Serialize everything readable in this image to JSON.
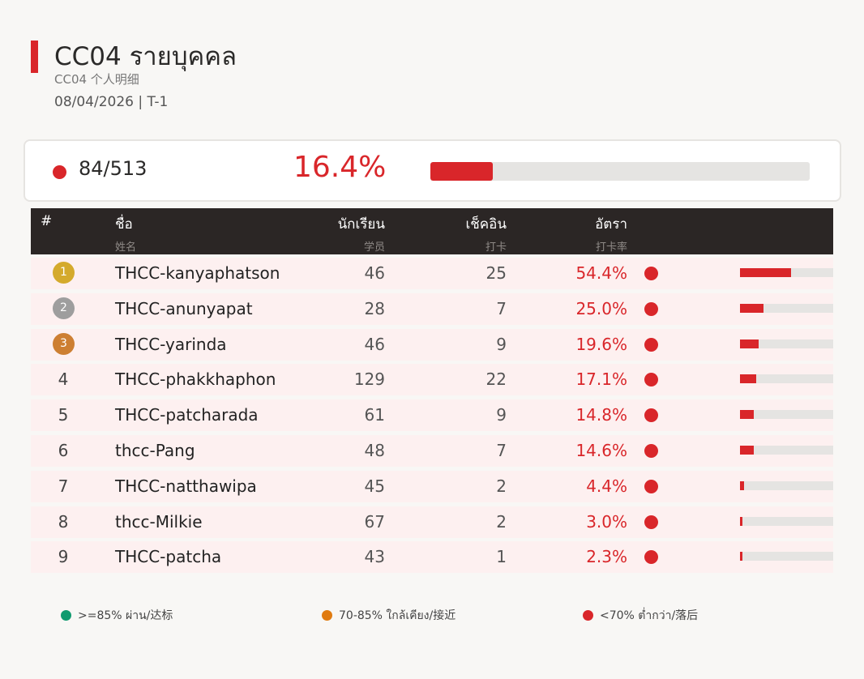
{
  "header": {
    "title": "CC04  รายบุคคล",
    "subtitle": "CC04  个人明细",
    "date": "08/04/2026  |  T-1"
  },
  "summary": {
    "count": "84/513",
    "percent_label": "16.4%",
    "percent_value": 0.164,
    "status_color": "#d9262a"
  },
  "table": {
    "columns": [
      {
        "main": "#",
        "sub": ""
      },
      {
        "main": "ชื่อ",
        "sub": "姓名"
      },
      {
        "main": "นักเรียน",
        "sub": "学员"
      },
      {
        "main": "เช็คอิน",
        "sub": "打卡"
      },
      {
        "main": "อัตรา",
        "sub": "打卡率"
      }
    ],
    "rows": [
      {
        "rank": "1",
        "name": "THCC-kanyaphatson",
        "students": "46",
        "checkin": "25",
        "rate": "54.4%",
        "rate_value": 0.544
      },
      {
        "rank": "2",
        "name": "THCC-anunyapat",
        "students": "28",
        "checkin": "7",
        "rate": "25.0%",
        "rate_value": 0.25
      },
      {
        "rank": "3",
        "name": "THCC-yarinda",
        "students": "46",
        "checkin": "9",
        "rate": "19.6%",
        "rate_value": 0.196
      },
      {
        "rank": "4",
        "name": "THCC-phakkhaphon",
        "students": "129",
        "checkin": "22",
        "rate": "17.1%",
        "rate_value": 0.171
      },
      {
        "rank": "5",
        "name": "THCC-patcharada",
        "students": "61",
        "checkin": "9",
        "rate": "14.8%",
        "rate_value": 0.148
      },
      {
        "rank": "6",
        "name": "thcc-Pang",
        "students": "48",
        "checkin": "7",
        "rate": "14.6%",
        "rate_value": 0.146
      },
      {
        "rank": "7",
        "name": "THCC-natthawipa",
        "students": "45",
        "checkin": "2",
        "rate": "4.4%",
        "rate_value": 0.044
      },
      {
        "rank": "8",
        "name": "thcc-Milkie",
        "students": "67",
        "checkin": "2",
        "rate": "3.0%",
        "rate_value": 0.03
      },
      {
        "rank": "9",
        "name": "THCC-patcha",
        "students": "43",
        "checkin": "1",
        "rate": "2.3%",
        "rate_value": 0.023
      }
    ]
  },
  "colors": {
    "accent_red": "#d9262a",
    "medal_gold": "#d4aa2c",
    "medal_silver": "#9e9e9e",
    "medal_bronze": "#cd7f32",
    "pass_green": "#0f9a6e",
    "near_orange": "#e07b10"
  },
  "legend": [
    {
      "label": ">=85% ผ่าน/达标",
      "color": "#0f9a6e"
    },
    {
      "label": "70-85% ใกล้เคียง/接近",
      "color": "#e07b10"
    },
    {
      "label": "<70% ต่ำกว่า/落后",
      "color": "#d9262a"
    }
  ]
}
